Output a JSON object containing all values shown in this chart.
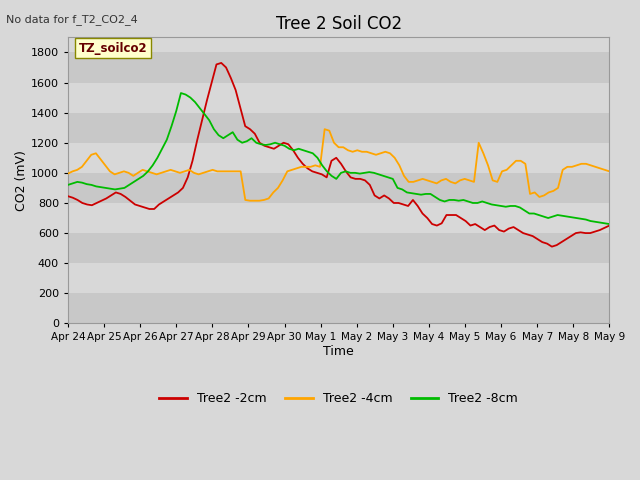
{
  "title": "Tree 2 Soil CO2",
  "no_data_text": "No data for f_T2_CO2_4",
  "xlabel": "Time",
  "ylabel": "CO2 (mV)",
  "ylim": [
    0,
    1900
  ],
  "yticks": [
    0,
    200,
    400,
    600,
    800,
    1000,
    1200,
    1400,
    1600,
    1800
  ],
  "legend_box_text": "TZ_soilco2",
  "fig_bg_color": "#d8d8d8",
  "plot_bg_color": "#d8d8d8",
  "band_colors": [
    "#c8c8c8",
    "#d8d8d8"
  ],
  "colors": {
    "2cm": "#cc0000",
    "4cm": "#ffa500",
    "8cm": "#00bb00"
  },
  "legend_labels": [
    "Tree2 -2cm",
    "Tree2 -4cm",
    "Tree2 -8cm"
  ],
  "x_tick_labels": [
    "Apr 24",
    "Apr 25",
    "Apr 26",
    "Apr 27",
    "Apr 28",
    "Apr 29",
    "Apr 30",
    "May 1",
    "May 2",
    "May 3",
    "May 4",
    "May 5",
    "May 6",
    "May 7",
    "May 8",
    "May 9"
  ],
  "tree2_2cm": [
    845,
    835,
    820,
    800,
    790,
    785,
    800,
    815,
    830,
    850,
    870,
    860,
    840,
    815,
    790,
    780,
    770,
    760,
    760,
    790,
    810,
    830,
    850,
    870,
    900,
    970,
    1080,
    1220,
    1350,
    1480,
    1600,
    1720,
    1730,
    1700,
    1630,
    1550,
    1430,
    1310,
    1290,
    1260,
    1200,
    1180,
    1170,
    1160,
    1180,
    1200,
    1190,
    1150,
    1100,
    1060,
    1030,
    1010,
    1000,
    990,
    970,
    1080,
    1100,
    1060,
    1010,
    970,
    960,
    960,
    950,
    920,
    850,
    830,
    850,
    830,
    800,
    800,
    790,
    780,
    820,
    780,
    730,
    700,
    660,
    650,
    665,
    720,
    720,
    720,
    700,
    680,
    650,
    660,
    640,
    620,
    640,
    650,
    620,
    610,
    630,
    640,
    620,
    600,
    590,
    580,
    560,
    540,
    530,
    510,
    520,
    540,
    560,
    580,
    600,
    605,
    600,
    600,
    610,
    620,
    635,
    650
  ],
  "tree2_4cm": [
    995,
    1010,
    1020,
    1040,
    1080,
    1120,
    1130,
    1090,
    1050,
    1010,
    990,
    1000,
    1010,
    1000,
    980,
    1000,
    1020,
    1010,
    1000,
    990,
    1000,
    1010,
    1020,
    1010,
    1000,
    1010,
    1020,
    1000,
    990,
    1000,
    1010,
    1020,
    1010,
    1010,
    1010,
    1010,
    1010,
    1010,
    820,
    815,
    815,
    815,
    820,
    830,
    870,
    900,
    950,
    1010,
    1020,
    1030,
    1040,
    1040,
    1040,
    1050,
    1040,
    1290,
    1280,
    1200,
    1170,
    1170,
    1150,
    1140,
    1150,
    1140,
    1140,
    1130,
    1120,
    1130,
    1140,
    1130,
    1100,
    1050,
    980,
    940,
    940,
    950,
    960,
    950,
    940,
    930,
    950,
    960,
    940,
    930,
    950,
    960,
    950,
    940,
    1200,
    1130,
    1050,
    950,
    940,
    1010,
    1020,
    1050,
    1080,
    1080,
    1060,
    860,
    870,
    840,
    850,
    870,
    880,
    900,
    1020,
    1040,
    1040,
    1050,
    1060,
    1060,
    1050,
    1040,
    1030,
    1020,
    1010
  ],
  "tree2_8cm": [
    920,
    930,
    940,
    935,
    925,
    920,
    910,
    905,
    900,
    895,
    890,
    895,
    900,
    920,
    940,
    960,
    980,
    1010,
    1050,
    1100,
    1160,
    1220,
    1310,
    1410,
    1530,
    1520,
    1500,
    1470,
    1430,
    1390,
    1350,
    1290,
    1250,
    1230,
    1250,
    1270,
    1220,
    1200,
    1210,
    1230,
    1200,
    1190,
    1185,
    1190,
    1200,
    1190,
    1180,
    1160,
    1150,
    1160,
    1150,
    1140,
    1130,
    1100,
    1050,
    1010,
    980,
    960,
    1000,
    1010,
    1000,
    1000,
    995,
    1000,
    1005,
    1000,
    990,
    980,
    970,
    960,
    900,
    890,
    870,
    865,
    860,
    855,
    860,
    860,
    840,
    820,
    810,
    820,
    820,
    815,
    820,
    810,
    800,
    800,
    810,
    800,
    790,
    785,
    780,
    775,
    780,
    780,
    770,
    750,
    730,
    730,
    720,
    710,
    700,
    710,
    720,
    715,
    710,
    705,
    700,
    695,
    690,
    680,
    675,
    670,
    665,
    660
  ]
}
